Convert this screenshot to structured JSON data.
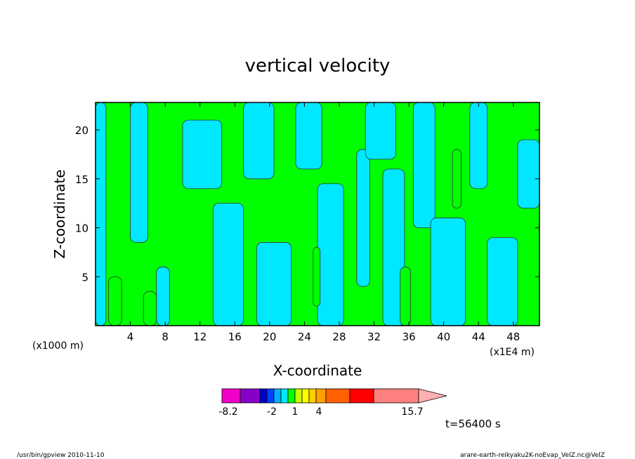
{
  "chart_data": {
    "type": "heatmap",
    "title": "vertical velocity",
    "xlabel": "X-coordinate",
    "ylabel": "Z-coordinate",
    "x_unit_left": "(x1000 m)",
    "x_unit_right": "(x1E4 m)",
    "x_ticks": [
      "4",
      "8",
      "12",
      "16",
      "20",
      "24",
      "28",
      "32",
      "36",
      "40",
      "44",
      "48"
    ],
    "x_tick_values": [
      4,
      8,
      12,
      16,
      20,
      24,
      28,
      32,
      36,
      40,
      44,
      48
    ],
    "xlim": [
      0,
      51
    ],
    "y_ticks": [
      "5",
      "10",
      "15",
      "20"
    ],
    "y_tick_values": [
      5,
      10,
      15,
      20
    ],
    "ylim": [
      0,
      22.8
    ],
    "field_colors": {
      "positive": "#00ff00",
      "negative": "#00e8ff"
    },
    "regions": [
      {
        "class": "negative",
        "x0": 0.0,
        "x1": 1.2,
        "z0": 0,
        "z1": 22.8
      },
      {
        "class": "negative",
        "x0": 4.0,
        "x1": 6.0,
        "z0": 8.5,
        "z1": 22.8
      },
      {
        "class": "negative",
        "x0": 7.0,
        "x1": 8.5,
        "z0": 0,
        "z1": 6.0
      },
      {
        "class": "negative",
        "x0": 10.0,
        "x1": 14.5,
        "z0": 14.0,
        "z1": 21.0
      },
      {
        "class": "negative",
        "x0": 13.5,
        "x1": 17.0,
        "z0": 0,
        "z1": 12.5
      },
      {
        "class": "negative",
        "x0": 17.0,
        "x1": 20.5,
        "z0": 15.0,
        "z1": 22.8
      },
      {
        "class": "negative",
        "x0": 18.5,
        "x1": 22.5,
        "z0": 0,
        "z1": 8.5
      },
      {
        "class": "negative",
        "x0": 23.0,
        "x1": 26.0,
        "z0": 16.0,
        "z1": 22.8
      },
      {
        "class": "negative",
        "x0": 25.5,
        "x1": 28.5,
        "z0": 0,
        "z1": 14.5
      },
      {
        "class": "negative",
        "x0": 30.0,
        "x1": 31.5,
        "z0": 4.0,
        "z1": 18.0
      },
      {
        "class": "negative",
        "x0": 31.0,
        "x1": 34.5,
        "z0": 17.0,
        "z1": 22.8
      },
      {
        "class": "negative",
        "x0": 33.0,
        "x1": 35.5,
        "z0": 0,
        "z1": 16.0
      },
      {
        "class": "negative",
        "x0": 36.5,
        "x1": 39.0,
        "z0": 10.0,
        "z1": 22.8
      },
      {
        "class": "negative",
        "x0": 38.5,
        "x1": 42.5,
        "z0": 0,
        "z1": 11.0
      },
      {
        "class": "negative",
        "x0": 43.0,
        "x1": 45.0,
        "z0": 14.0,
        "z1": 22.8
      },
      {
        "class": "negative",
        "x0": 45.0,
        "x1": 48.5,
        "z0": 0,
        "z1": 9.0
      },
      {
        "class": "negative",
        "x0": 48.5,
        "x1": 51.0,
        "z0": 12.0,
        "z1": 19.0
      },
      {
        "class": "positive",
        "x0": 1.5,
        "x1": 3.0,
        "z0": 0,
        "z1": 5.0
      },
      {
        "class": "positive",
        "x0": 5.5,
        "x1": 7.0,
        "z0": 0,
        "z1": 3.5
      },
      {
        "class": "positive",
        "x0": 25.0,
        "x1": 25.8,
        "z0": 2.0,
        "z1": 8.0
      },
      {
        "class": "positive",
        "x0": 35.0,
        "x1": 36.2,
        "z0": 0,
        "z1": 6.0
      },
      {
        "class": "positive",
        "x0": 41.0,
        "x1": 42.0,
        "z0": 12.0,
        "z1": 18.0
      }
    ]
  },
  "colorbar": {
    "colors": [
      "#f000c8",
      "#8800c8",
      "#0000c8",
      "#0040ff",
      "#00b0ff",
      "#00e8ff",
      "#00ff00",
      "#c8ff00",
      "#ffff00",
      "#ffd000",
      "#ffa000",
      "#ff6000",
      "#ff0000",
      "#ff8080",
      "#ffb0b0"
    ],
    "labels": [
      "-8.2",
      "-2",
      "1",
      "4",
      "15.7"
    ]
  },
  "time_label": "t=56400 s",
  "footer_left": "/usr/bin/gpview   2010-11-10",
  "footer_right": "arare-earth-reikyaku2K-noEvap_VelZ.nc@VelZ"
}
